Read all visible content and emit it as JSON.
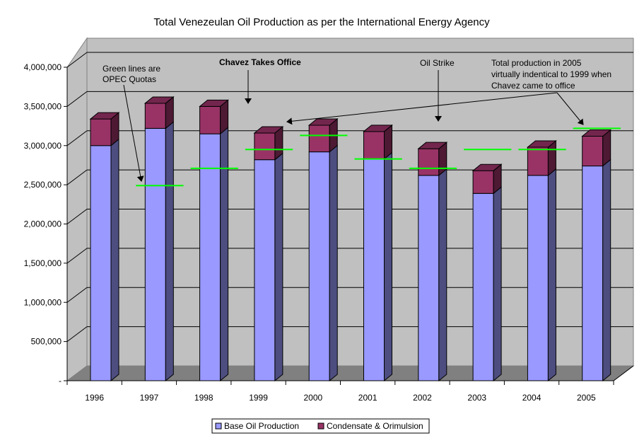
{
  "chart_data": {
    "type": "bar",
    "stacked": true,
    "title": "Total Venezeulan Oil Production as per the International Energy Agency",
    "xlabel": "",
    "ylabel": "",
    "ylim": [
      0,
      4000000
    ],
    "yticks": [
      "-",
      "500,000",
      "1,000,000",
      "1,500,000",
      "2,000,000",
      "2,500,000",
      "3,000,000",
      "3,500,000",
      "4,000,000"
    ],
    "categories": [
      "1996",
      "1997",
      "1998",
      "1999",
      "2000",
      "2001",
      "2002",
      "2003",
      "2004",
      "2005"
    ],
    "series": [
      {
        "name": "Base Oil Production",
        "color": "#9999ff",
        "values": [
          3000000,
          3220000,
          3150000,
          2820000,
          2920000,
          2830000,
          2620000,
          2390000,
          2620000,
          2740000
        ]
      },
      {
        "name": "Condensate & Orimulsion",
        "color": "#993366",
        "values": [
          340000,
          320000,
          350000,
          340000,
          340000,
          350000,
          340000,
          290000,
          360000,
          380000
        ]
      }
    ],
    "opec_quotas": {
      "color": "#00ff00",
      "values": [
        null,
        2490000,
        2710000,
        2950000,
        3130000,
        2830000,
        2710000,
        2950000,
        2950000,
        3220000
      ]
    },
    "annotations": [
      {
        "text": [
          "Green lines are",
          "OPEC Quotas"
        ]
      },
      {
        "text": [
          "Chavez Takes Office"
        ]
      },
      {
        "text": [
          "Oil Strike"
        ]
      },
      {
        "text": [
          "Total production in 2005",
          "virtually indentical to 1999 when",
          "Chavez came to office"
        ]
      }
    ],
    "legend": {
      "position": "bottom",
      "entries": [
        "Base Oil Production",
        "Condensate & Orimulsion"
      ]
    },
    "grid": true
  }
}
